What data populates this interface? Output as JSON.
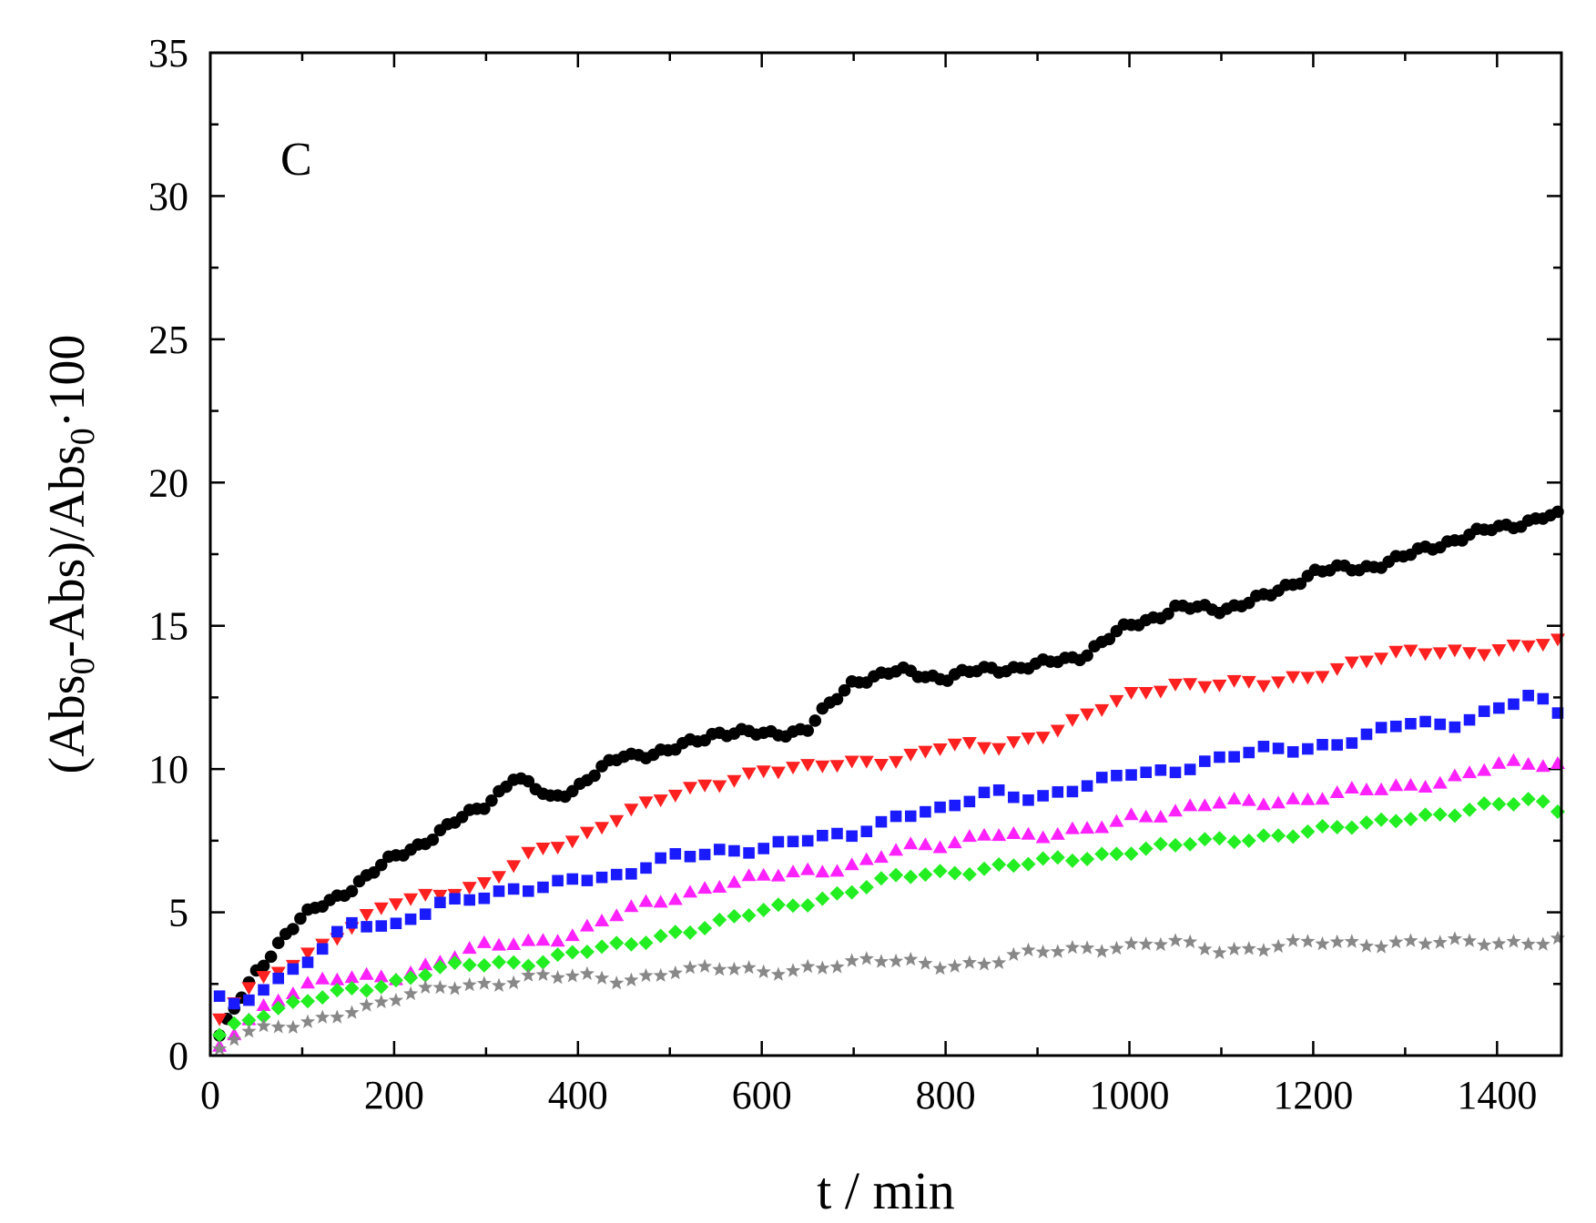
{
  "chart_data": {
    "type": "scatter",
    "title": "",
    "panel_label": "C",
    "xlabel": "t / min",
    "ylabel": {
      "parts": [
        {
          "text": "(Abs",
          "sub": false
        },
        {
          "text": "0",
          "sub": true
        },
        {
          "text": "-Abs)/Abs",
          "sub": false
        },
        {
          "text": "0",
          "sub": true
        },
        {
          "text": "·100",
          "sub": false
        }
      ]
    },
    "xlim": [
      0,
      1470
    ],
    "ylim": [
      0,
      35
    ],
    "xticks": [
      0,
      200,
      400,
      600,
      800,
      1000,
      1200,
      1400
    ],
    "yticks": [
      0,
      5,
      10,
      15,
      20,
      25,
      30,
      35
    ],
    "x_minor_step": 100,
    "y_minor_step": 2.5,
    "grid": false,
    "legend": "none",
    "series": [
      {
        "marker": "circle",
        "color": "#000000",
        "x_step": 8,
        "anchors": [
          [
            10,
            0.7
          ],
          [
            30,
            1.8
          ],
          [
            50,
            2.9
          ],
          [
            80,
            4.2
          ],
          [
            100,
            4.8
          ],
          [
            150,
            5.8
          ],
          [
            200,
            6.9
          ],
          [
            250,
            7.8
          ],
          [
            300,
            8.8
          ],
          [
            330,
            9.7
          ],
          [
            370,
            9.0
          ],
          [
            400,
            9.4
          ],
          [
            450,
            10.5
          ],
          [
            500,
            10.6
          ],
          [
            550,
            11.3
          ],
          [
            600,
            11.2
          ],
          [
            650,
            11.4
          ],
          [
            700,
            13.1
          ],
          [
            750,
            13.4
          ],
          [
            800,
            13.2
          ],
          [
            850,
            13.5
          ],
          [
            900,
            13.6
          ],
          [
            950,
            14.0
          ],
          [
            1000,
            15.0
          ],
          [
            1050,
            15.6
          ],
          [
            1100,
            15.6
          ],
          [
            1150,
            16.0
          ],
          [
            1200,
            16.9
          ],
          [
            1250,
            17.0
          ],
          [
            1300,
            17.4
          ],
          [
            1350,
            18.0
          ],
          [
            1400,
            18.4
          ],
          [
            1450,
            18.8
          ],
          [
            1470,
            18.8
          ]
        ]
      },
      {
        "marker": "triangle-down",
        "color": "#ff2020",
        "x_step": 16,
        "anchors": [
          [
            10,
            1.2
          ],
          [
            30,
            2.0
          ],
          [
            60,
            2.7
          ],
          [
            100,
            3.5
          ],
          [
            150,
            4.4
          ],
          [
            200,
            5.3
          ],
          [
            250,
            5.7
          ],
          [
            300,
            6.0
          ],
          [
            350,
            7.0
          ],
          [
            400,
            7.6
          ],
          [
            450,
            8.5
          ],
          [
            500,
            9.0
          ],
          [
            550,
            9.5
          ],
          [
            600,
            10.0
          ],
          [
            650,
            10.0
          ],
          [
            700,
            10.2
          ],
          [
            750,
            10.4
          ],
          [
            800,
            10.8
          ],
          [
            850,
            10.7
          ],
          [
            900,
            11.2
          ],
          [
            950,
            11.8
          ],
          [
            1000,
            12.5
          ],
          [
            1050,
            13.0
          ],
          [
            1100,
            13.0
          ],
          [
            1150,
            12.9
          ],
          [
            1200,
            13.3
          ],
          [
            1250,
            13.8
          ],
          [
            1300,
            14.0
          ],
          [
            1350,
            14.1
          ],
          [
            1400,
            14.2
          ],
          [
            1470,
            14.4
          ]
        ]
      },
      {
        "marker": "square",
        "color": "#1a1aff",
        "x_step": 16,
        "anchors": [
          [
            10,
            2.0
          ],
          [
            30,
            1.6
          ],
          [
            60,
            2.5
          ],
          [
            100,
            3.2
          ],
          [
            150,
            4.5
          ],
          [
            200,
            4.5
          ],
          [
            250,
            5.4
          ],
          [
            300,
            5.5
          ],
          [
            350,
            5.8
          ],
          [
            400,
            6.3
          ],
          [
            450,
            6.2
          ],
          [
            500,
            6.9
          ],
          [
            550,
            7.2
          ],
          [
            600,
            7.2
          ],
          [
            650,
            7.5
          ],
          [
            700,
            7.8
          ],
          [
            750,
            8.4
          ],
          [
            800,
            8.5
          ],
          [
            850,
            9.3
          ],
          [
            900,
            9.0
          ],
          [
            950,
            9.3
          ],
          [
            1000,
            9.9
          ],
          [
            1050,
            10.0
          ],
          [
            1100,
            10.3
          ],
          [
            1150,
            10.7
          ],
          [
            1200,
            10.8
          ],
          [
            1250,
            11.0
          ],
          [
            1300,
            11.6
          ],
          [
            1350,
            11.6
          ],
          [
            1400,
            12.1
          ],
          [
            1440,
            12.5
          ],
          [
            1470,
            11.9
          ]
        ]
      },
      {
        "marker": "triangle-up",
        "color": "#ff22ff",
        "x_step": 16,
        "anchors": [
          [
            10,
            0.3
          ],
          [
            30,
            1.0
          ],
          [
            60,
            1.8
          ],
          [
            100,
            2.4
          ],
          [
            150,
            2.7
          ],
          [
            200,
            2.8
          ],
          [
            250,
            3.3
          ],
          [
            300,
            3.8
          ],
          [
            350,
            4.0
          ],
          [
            400,
            4.3
          ],
          [
            450,
            5.0
          ],
          [
            500,
            5.5
          ],
          [
            550,
            6.0
          ],
          [
            600,
            6.2
          ],
          [
            650,
            6.4
          ],
          [
            700,
            6.7
          ],
          [
            750,
            7.2
          ],
          [
            800,
            7.3
          ],
          [
            850,
            7.9
          ],
          [
            900,
            7.6
          ],
          [
            950,
            7.8
          ],
          [
            1000,
            8.4
          ],
          [
            1050,
            8.5
          ],
          [
            1100,
            8.8
          ],
          [
            1150,
            8.9
          ],
          [
            1200,
            9.0
          ],
          [
            1250,
            9.2
          ],
          [
            1300,
            9.4
          ],
          [
            1350,
            9.7
          ],
          [
            1400,
            10.1
          ],
          [
            1470,
            10.2
          ]
        ]
      },
      {
        "marker": "diamond",
        "color": "#22ee22",
        "x_step": 16,
        "anchors": [
          [
            10,
            0.8
          ],
          [
            30,
            1.2
          ],
          [
            60,
            1.5
          ],
          [
            100,
            1.8
          ],
          [
            150,
            2.3
          ],
          [
            200,
            2.6
          ],
          [
            250,
            3.0
          ],
          [
            300,
            3.2
          ],
          [
            350,
            3.3
          ],
          [
            400,
            3.6
          ],
          [
            450,
            3.8
          ],
          [
            500,
            4.3
          ],
          [
            550,
            4.6
          ],
          [
            600,
            5.0
          ],
          [
            650,
            5.4
          ],
          [
            700,
            5.8
          ],
          [
            750,
            6.2
          ],
          [
            800,
            6.4
          ],
          [
            850,
            6.6
          ],
          [
            900,
            6.7
          ],
          [
            950,
            6.9
          ],
          [
            1000,
            7.2
          ],
          [
            1050,
            7.3
          ],
          [
            1100,
            7.5
          ],
          [
            1150,
            7.7
          ],
          [
            1200,
            7.8
          ],
          [
            1250,
            8.0
          ],
          [
            1300,
            8.4
          ],
          [
            1350,
            8.4
          ],
          [
            1400,
            8.7
          ],
          [
            1440,
            9.0
          ],
          [
            1470,
            8.6
          ]
        ]
      },
      {
        "marker": "star",
        "color": "#888888",
        "x_step": 16,
        "anchors": [
          [
            10,
            0.3
          ],
          [
            30,
            0.8
          ],
          [
            60,
            0.9
          ],
          [
            100,
            1.0
          ],
          [
            150,
            1.6
          ],
          [
            200,
            2.0
          ],
          [
            250,
            2.3
          ],
          [
            300,
            2.5
          ],
          [
            350,
            2.8
          ],
          [
            400,
            2.7
          ],
          [
            450,
            2.6
          ],
          [
            500,
            3.0
          ],
          [
            550,
            3.0
          ],
          [
            600,
            2.9
          ],
          [
            650,
            3.1
          ],
          [
            700,
            3.2
          ],
          [
            750,
            3.3
          ],
          [
            800,
            3.2
          ],
          [
            850,
            3.2
          ],
          [
            900,
            3.6
          ],
          [
            950,
            3.8
          ],
          [
            1000,
            3.8
          ],
          [
            1050,
            3.9
          ],
          [
            1100,
            3.7
          ],
          [
            1150,
            3.8
          ],
          [
            1200,
            3.9
          ],
          [
            1250,
            3.9
          ],
          [
            1300,
            4.0
          ],
          [
            1350,
            3.9
          ],
          [
            1400,
            3.9
          ],
          [
            1470,
            4.1
          ]
        ]
      }
    ]
  }
}
